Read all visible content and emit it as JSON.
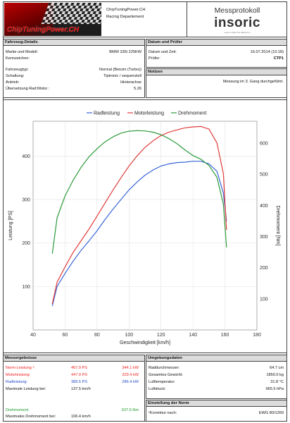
{
  "header": {
    "logo_text": "ChipTuningPower.CH",
    "shop_name": "ChipTuningPower.CH",
    "department": "Racing Departement",
    "title": "Messprotokoll",
    "brand": "insoric",
    "brand_sub": "power makes the difference"
  },
  "vehicle": {
    "title": "Fahrzeug-Details",
    "rows": [
      {
        "label": "Marke und Modell:",
        "value": "BMW 335i 225KW"
      },
      {
        "label": "Kennzeichen:",
        "value": ""
      },
      {
        "label": "Fahrzeugtyp:",
        "value": "Normal (Benzin (Turbo))"
      },
      {
        "label": "Schaltung:",
        "value": "Tiptronic / sequenziell"
      },
      {
        "label": "Antrieb:",
        "value": "Hinterachse"
      },
      {
        "label": "Übersetzung Rad:Motor :",
        "value": "5.26"
      }
    ]
  },
  "inspection": {
    "title": "Datum und Prüfer",
    "date_label": "Datum und Zeit:",
    "date_value": "16.07.2014 (15:18)",
    "tester_label": "Prüfer:",
    "tester_value": "CTP1"
  },
  "notes": {
    "title": "Notizen",
    "text": "Messung im 3. Gang durchgeführt."
  },
  "chart_data": {
    "type": "line",
    "xlabel": "Geschwindigkeit [km/h]",
    "ylabel_left": "Leistung [PS]",
    "ylabel_right": "Drehmoment [Nm]",
    "xlim": [
      40,
      180
    ],
    "ylim_left": [
      0,
      480
    ],
    "ylim_right": [
      0,
      670
    ],
    "x_ticks": [
      40,
      60,
      80,
      100,
      120,
      140,
      160,
      180
    ],
    "y_ticks_left": [
      100,
      200,
      300,
      400
    ],
    "y_ticks_right": [
      100,
      200,
      300,
      400,
      500,
      600
    ],
    "grid": true,
    "legend_position": "top",
    "series": [
      {
        "name": "Radleistung",
        "axis": "left",
        "color": "#3a66d8",
        "x": [
          52,
          55,
          60,
          65,
          70,
          75,
          80,
          85,
          90,
          95,
          100,
          105,
          110,
          115,
          120,
          125,
          130,
          135,
          140,
          145,
          150,
          155,
          159,
          161
        ],
        "y": [
          55,
          100,
          130,
          158,
          183,
          205,
          228,
          254,
          278,
          300,
          322,
          340,
          356,
          368,
          377,
          382,
          385,
          386,
          388,
          388,
          382,
          365,
          315,
          250
        ]
      },
      {
        "name": "Motorleistung",
        "axis": "left",
        "color": "#e23b3b",
        "x": [
          52,
          55,
          60,
          65,
          70,
          75,
          80,
          85,
          90,
          95,
          100,
          105,
          110,
          115,
          120,
          125,
          130,
          135,
          140,
          145,
          150,
          155,
          159,
          161
        ],
        "y": [
          60,
          110,
          145,
          178,
          205,
          232,
          262,
          292,
          322,
          350,
          377,
          400,
          420,
          435,
          447,
          455,
          460,
          465,
          467,
          468,
          462,
          430,
          360,
          230
        ]
      },
      {
        "name": "Drehmoment",
        "axis": "right",
        "color": "#2c9a3a",
        "x": [
          52,
          55,
          60,
          65,
          70,
          75,
          80,
          85,
          90,
          95,
          100,
          105,
          110,
          115,
          120,
          125,
          130,
          135,
          140,
          145,
          150,
          155,
          159,
          161
        ],
        "y": [
          245,
          360,
          430,
          480,
          522,
          556,
          582,
          604,
          620,
          632,
          638,
          640,
          639,
          635,
          627,
          614,
          598,
          578,
          560,
          548,
          528,
          490,
          405,
          265
        ]
      }
    ]
  },
  "results": {
    "title": "Messergebnisse",
    "rows": [
      {
        "label": "Norm-Leistung ¹:",
        "ps": "467.9 PS",
        "kw": "344.1 kW",
        "color": "red"
      },
      {
        "label": "Motorleistung:",
        "ps": "447.9 PS",
        "kw": "329.4 kW",
        "color": "red"
      },
      {
        "label": "Radleistung:",
        "ps": "389.5 PS",
        "kw": "286.4 kW",
        "color": "blue"
      },
      {
        "label": "Maximale Leistung bei:",
        "ps": "137.5 km/h",
        "kw": "",
        "color": ""
      }
    ],
    "torque_label": "Drehmoment",
    "torque_value": "637.6 Nm",
    "max_torque_label": "Maximales Drehmoment bei:",
    "max_torque_value": "106.4 km/h"
  },
  "environment": {
    "title": "Umgebungsdaten",
    "rows": [
      {
        "label": "Raddurchmesser:",
        "value": "64.7 cm"
      },
      {
        "label": "Gesamtes Gewicht:",
        "value": "1850.0 kg"
      },
      {
        "label": "Lufttemperatur:",
        "value": "31.8 °C"
      },
      {
        "label": "Luftdruck:",
        "value": "965.5 hPa"
      }
    ]
  },
  "norm": {
    "title": "Einstellung der Norm",
    "label": "¹Korrektur nach:",
    "value": "EWG 80/1269"
  }
}
